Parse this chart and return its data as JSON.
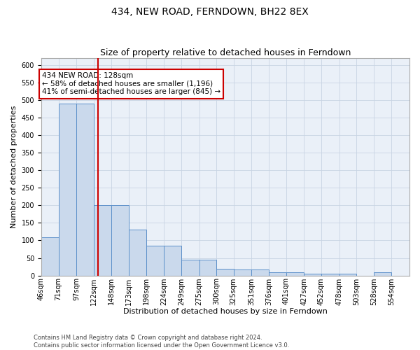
{
  "title": "434, NEW ROAD, FERNDOWN, BH22 8EX",
  "subtitle": "Size of property relative to detached houses in Ferndown",
  "xlabel": "Distribution of detached houses by size in Ferndown",
  "ylabel": "Number of detached properties",
  "bar_color": "#cad9ec",
  "bar_edge_color": "#5b8fc9",
  "grid_color": "#c8d4e3",
  "background_color": "#eaf0f8",
  "vline_x": 128,
  "vline_color": "#cc0000",
  "categories": [
    "46sqm",
    "71sqm",
    "97sqm",
    "122sqm",
    "148sqm",
    "173sqm",
    "198sqm",
    "224sqm",
    "249sqm",
    "275sqm",
    "300sqm",
    "325sqm",
    "351sqm",
    "376sqm",
    "401sqm",
    "427sqm",
    "452sqm",
    "478sqm",
    "503sqm",
    "528sqm",
    "554sqm"
  ],
  "bin_edges": [
    46,
    71,
    97,
    122,
    148,
    173,
    198,
    224,
    249,
    275,
    300,
    325,
    351,
    376,
    401,
    427,
    452,
    478,
    503,
    528,
    554,
    580
  ],
  "values": [
    108,
    490,
    490,
    200,
    200,
    130,
    85,
    85,
    45,
    45,
    20,
    18,
    18,
    10,
    10,
    5,
    5,
    5,
    0,
    10,
    0
  ],
  "ylim": [
    0,
    620
  ],
  "yticks": [
    0,
    50,
    100,
    150,
    200,
    250,
    300,
    350,
    400,
    450,
    500,
    550,
    600
  ],
  "annotation_text": "434 NEW ROAD: 128sqm\n← 58% of detached houses are smaller (1,196)\n41% of semi-detached houses are larger (845) →",
  "footer": "Contains HM Land Registry data © Crown copyright and database right 2024.\nContains public sector information licensed under the Open Government Licence v3.0.",
  "title_fontsize": 10,
  "subtitle_fontsize": 9,
  "label_fontsize": 8,
  "tick_fontsize": 7,
  "footer_fontsize": 6,
  "annot_fontsize": 7.5
}
